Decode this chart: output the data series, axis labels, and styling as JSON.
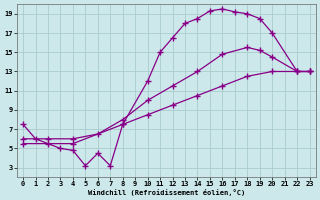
{
  "xlabel": "Windchill (Refroidissement éolien,°C)",
  "bg_color": "#cce8ea",
  "grid_color": "#aacccc",
  "line_color": "#880088",
  "xlim": [
    -0.5,
    23.5
  ],
  "ylim": [
    2,
    20
  ],
  "xticks": [
    0,
    1,
    2,
    3,
    4,
    5,
    6,
    7,
    8,
    9,
    10,
    11,
    12,
    13,
    14,
    15,
    16,
    17,
    18,
    19,
    20,
    21,
    22,
    23
  ],
  "yticks": [
    3,
    5,
    7,
    9,
    11,
    13,
    15,
    17,
    19
  ],
  "line1_x": [
    0,
    1,
    2,
    3,
    4,
    5,
    6,
    7,
    8,
    10,
    11,
    12,
    13,
    14,
    15,
    16,
    17,
    18,
    19,
    20,
    22,
    23
  ],
  "line1_y": [
    7.5,
    6.0,
    5.5,
    5.0,
    4.8,
    3.2,
    4.5,
    3.2,
    7.5,
    12.0,
    15.0,
    16.5,
    18.0,
    18.5,
    19.3,
    19.5,
    19.2,
    19.0,
    18.5,
    17.0,
    13.0,
    13.0
  ],
  "line2_x": [
    0,
    2,
    4,
    6,
    8,
    10,
    12,
    14,
    16,
    18,
    19,
    20,
    22,
    23
  ],
  "line2_y": [
    6.0,
    6.0,
    6.0,
    6.5,
    8.0,
    10.0,
    11.5,
    13.0,
    14.8,
    15.5,
    15.2,
    14.5,
    13.0,
    13.0
  ],
  "line3_x": [
    0,
    4,
    8,
    10,
    12,
    14,
    16,
    18,
    20,
    22,
    23
  ],
  "line3_y": [
    5.5,
    5.5,
    7.5,
    8.5,
    9.5,
    10.5,
    11.5,
    12.5,
    13.0,
    13.0,
    13.0
  ],
  "marker": "+",
  "markersize": 4,
  "linewidth": 0.9,
  "tick_fontsize": 5,
  "xlabel_fontsize": 5
}
